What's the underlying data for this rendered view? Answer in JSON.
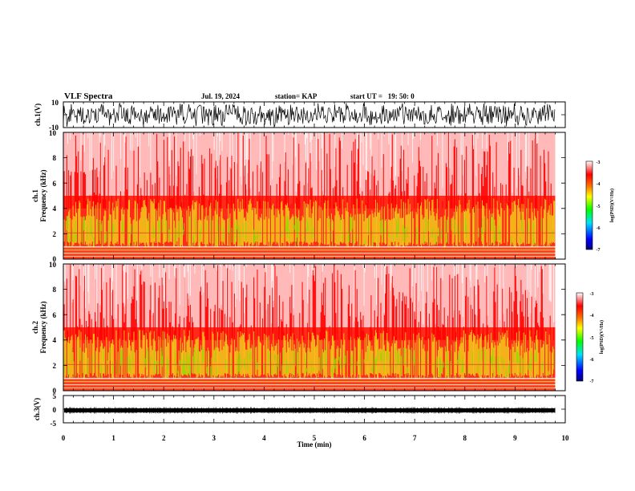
{
  "header": {
    "title": "VLF Spectra",
    "date": "Jul. 19, 2024",
    "station": "station= KAP",
    "start": "start UT =   19: 50: 0"
  },
  "chart_data": [
    {
      "type": "line",
      "name": "ch1-waveform",
      "ylabel": "ch.1(V)",
      "ylim": [
        -10,
        10
      ],
      "yticks": [
        "10",
        "-10"
      ],
      "xlim": [
        0,
        10
      ],
      "data_end_min": 9.8
    },
    {
      "type": "heatmap",
      "name": "ch1-spectrogram",
      "ylabel_line1": "ch.1",
      "ylabel_line2": "Frequency (kHz)",
      "ylim": [
        0,
        10
      ],
      "yticks": [
        "0",
        "2",
        "4",
        "6",
        "8",
        "10"
      ],
      "xlim": [
        0,
        10
      ],
      "data_end_min": 9.8,
      "colorbar": {
        "label": "log(PSD)(V²/Hz)",
        "range": [
          -7,
          -3
        ],
        "ticks": [
          "-3",
          "-4",
          "-5",
          "-6",
          "-7"
        ]
      }
    },
    {
      "type": "heatmap",
      "name": "ch2-spectrogram",
      "ylabel_line1": "ch.2",
      "ylabel_line2": "Frequency (kHz)",
      "ylim": [
        0,
        10
      ],
      "yticks": [
        "0",
        "2",
        "4",
        "6",
        "8",
        "10"
      ],
      "xlim": [
        0,
        10
      ],
      "data_end_min": 9.8,
      "colorbar": {
        "label": "log(PSD)(V²/Hz)",
        "range": [
          -7,
          -3
        ],
        "ticks": [
          "-3",
          "-4",
          "-5",
          "-6",
          "-7"
        ]
      }
    },
    {
      "type": "line",
      "name": "ch3-waveform",
      "ylabel": "ch.3(V)",
      "ylim": [
        -5,
        5
      ],
      "yticks": [
        "5",
        "0",
        "-5"
      ],
      "xlim": [
        0,
        10
      ],
      "data_end_min": 9.8,
      "xlabel": "Time (min)",
      "xticks": [
        "0",
        "1",
        "2",
        "3",
        "4",
        "5",
        "6",
        "7",
        "8",
        "9",
        "10"
      ]
    }
  ],
  "colors": {
    "waveform": "#000000",
    "colormap": [
      "#00007f",
      "#0000ff",
      "#00ffff",
      "#00ff00",
      "#ffff00",
      "#ff8000",
      "#ff0000",
      "#ffffff"
    ]
  }
}
